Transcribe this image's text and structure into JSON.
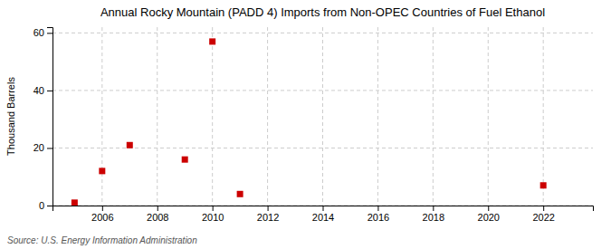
{
  "chart_data": {
    "type": "scatter",
    "title": "Annual Rocky Mountain (PADD 4) Imports from Non-OPEC Countries of Fuel Ethanol",
    "ylabel": "Thousand Barrels",
    "source": "Source: U.S. Energy Information Administration",
    "x": [
      2005,
      2006,
      2007,
      2009,
      2010,
      2011,
      2022
    ],
    "values": [
      1,
      12,
      21,
      16,
      57,
      4,
      7
    ],
    "color": "#cc0000",
    "marker": "square",
    "xlim": [
      2004.2,
      2023.8
    ],
    "ylim": [
      0,
      62
    ],
    "xticks": [
      2006,
      2008,
      2010,
      2012,
      2014,
      2016,
      2018,
      2020,
      2022
    ],
    "yticks": [
      0,
      20,
      40,
      60
    ],
    "grid": true
  }
}
